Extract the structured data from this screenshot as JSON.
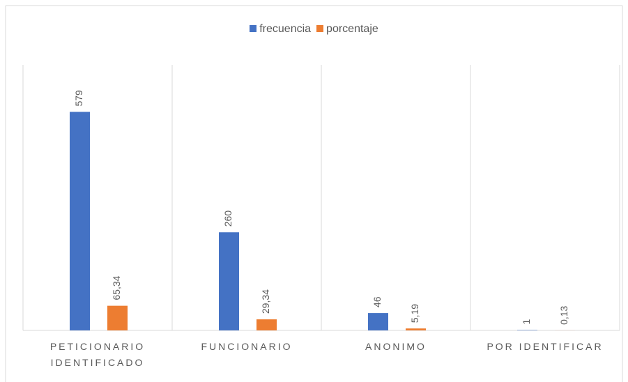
{
  "chart_data": {
    "type": "bar",
    "categories": [
      "PETICIONARIO IDENTIFICADO",
      "FUNCIONARIO",
      "ANONIMO",
      "POR IDENTIFICAR"
    ],
    "series": [
      {
        "name": "frecuencia",
        "color": "#4472c4",
        "values": [
          579,
          260,
          46,
          1
        ]
      },
      {
        "name": "porcentaje",
        "color": "#ed7d31",
        "values": [
          65.34,
          29.34,
          5.19,
          0.13
        ],
        "value_labels": [
          "65,34",
          "29,34",
          "5,19",
          "0,13"
        ]
      }
    ],
    "ylim": [
      0,
      700
    ]
  }
}
